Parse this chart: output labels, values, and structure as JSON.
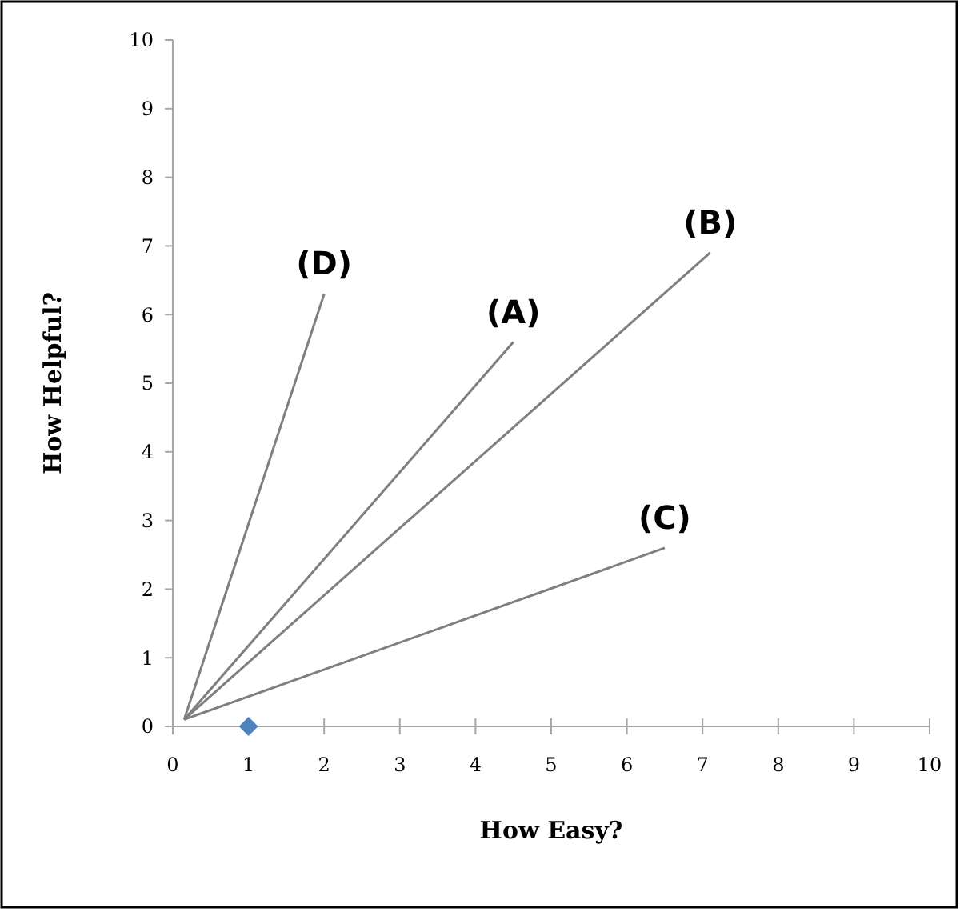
{
  "chart_data": {
    "type": "scatter",
    "xlabel": "How Easy?",
    "ylabel": "How Helpful?",
    "xlim": [
      0,
      10
    ],
    "ylim": [
      0,
      10
    ],
    "xticks": [
      0,
      1,
      2,
      3,
      4,
      5,
      6,
      7,
      8,
      9,
      10
    ],
    "yticks": [
      0,
      1,
      2,
      3,
      4,
      5,
      6,
      7,
      8,
      9,
      10
    ],
    "grid": false,
    "series": [
      {
        "type": "line",
        "name": "(A)",
        "color": "#7f7f7f",
        "marker": "none",
        "x": [
          0.15,
          4.5
        ],
        "values": [
          0.1,
          5.6
        ]
      },
      {
        "type": "line",
        "name": "(B)",
        "color": "#7f7f7f",
        "marker": "none",
        "x": [
          0.15,
          7.1
        ],
        "values": [
          0.1,
          6.9
        ]
      },
      {
        "type": "line",
        "name": "(C)",
        "color": "#7f7f7f",
        "marker": "none",
        "x": [
          0.15,
          6.5
        ],
        "values": [
          0.1,
          2.6
        ]
      },
      {
        "type": "line",
        "name": "(D)",
        "color": "#7f7f7f",
        "marker": "none",
        "x": [
          0.15,
          2
        ],
        "values": [
          0.1,
          6.3
        ]
      },
      {
        "type": "scatter",
        "color": "#4f81bd",
        "marker": "diamond",
        "x": [
          1
        ],
        "values": [
          0
        ]
      }
    ]
  }
}
